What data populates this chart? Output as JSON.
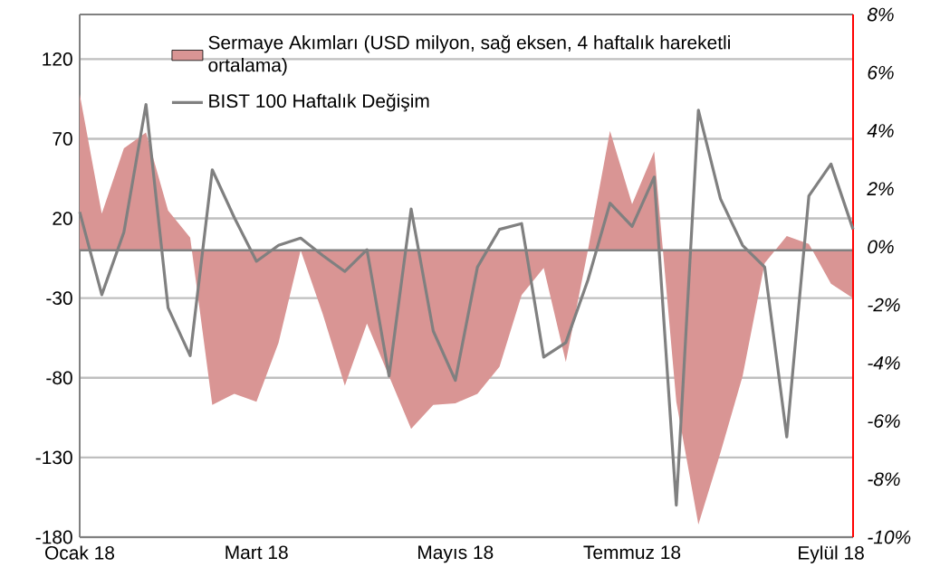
{
  "chart_data": {
    "type": "line",
    "categories": [
      "Ocak 18",
      null,
      null,
      null,
      null,
      null,
      null,
      null,
      "Mart 18",
      null,
      null,
      null,
      null,
      null,
      null,
      null,
      null,
      "Mayıs 18",
      null,
      null,
      null,
      null,
      null,
      null,
      null,
      "Temmuz 18",
      null,
      null,
      null,
      null,
      null,
      null,
      null,
      null,
      "Eylül 18",
      null
    ],
    "series": [
      {
        "name": "Sermaye Akımları (USD milyon, sağ eksen, 4 haftalık hareketli ortalama)",
        "type": "area",
        "color": "#d99594",
        "values": [
          98,
          23,
          64,
          74,
          25,
          8,
          -97,
          -90,
          -95,
          -58,
          0,
          -40,
          -85,
          -46,
          -79,
          -112,
          -97,
          -96,
          -90,
          -73,
          -28,
          -11,
          -70,
          0,
          75,
          29,
          62,
          -95,
          -172,
          -127,
          -79,
          -8,
          9,
          4,
          -21,
          -30
        ]
      },
      {
        "name": "BIST 100 Haftalık Değişim",
        "axis": "y2",
        "color": "#808080",
        "values": [
          1.2,
          -1.65,
          0.5,
          4.9,
          -2.1,
          -3.75,
          2.65,
          1.0,
          -0.5,
          0.05,
          0.3,
          -0.3,
          -0.85,
          -0.1,
          -4.45,
          1.3,
          -2.9,
          -4.6,
          -0.7,
          0.6,
          0.8,
          -3.8,
          -3.3,
          -1.15,
          1.5,
          0.7,
          2.4,
          -8.9,
          4.7,
          1.65,
          0.05,
          -0.7,
          -6.55,
          1.75,
          2.85,
          0.6
        ]
      }
    ],
    "ylim": [
      -180,
      148
    ],
    "yticks": [
      -180,
      -130,
      -80,
      -30,
      20,
      70,
      120
    ],
    "y2lim": [
      -10,
      8
    ],
    "y2ticks": [
      {
        "value": -10,
        "label": "-10%"
      },
      {
        "value": -8,
        "label": "-8%"
      },
      {
        "value": -6,
        "label": "-6%"
      },
      {
        "value": -4,
        "label": "-4%"
      },
      {
        "value": -2,
        "label": "-2%"
      },
      {
        "value": 0,
        "label": "0%"
      },
      {
        "value": 2,
        "label": "2%"
      },
      {
        "value": 4,
        "label": "4%"
      },
      {
        "value": 6,
        "label": "6%"
      },
      {
        "value": 8,
        "label": "8%"
      }
    ],
    "ref_lines": [
      {
        "axis": "y",
        "value": 0,
        "color": "#808080"
      }
    ],
    "grid": "y",
    "legend": "top"
  }
}
